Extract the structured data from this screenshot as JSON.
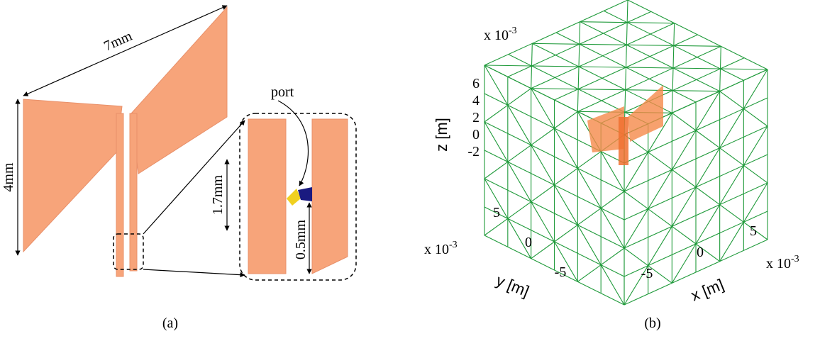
{
  "panel_a": {
    "dim_width": "7mm",
    "dim_height": "4mm",
    "port": "port",
    "dim_gap_height": "1.7mm",
    "dim_feed": "0.5mm",
    "caption": "(a)"
  },
  "panel_b": {
    "z_scale": {
      "base": "x 10",
      "exp": "-3"
    },
    "y_scale": {
      "base": "x 10",
      "exp": "-3"
    },
    "x_scale": {
      "base": "x 10",
      "exp": "-3"
    },
    "z_label": "z [m]",
    "y_label": "y [m]",
    "x_label": "x [m]",
    "z_ticks": [
      "6",
      "4",
      "2",
      "0",
      "-2"
    ],
    "y_ticks": [
      "5",
      "0",
      "-5"
    ],
    "x_ticks": [
      "5",
      "0",
      "-5"
    ],
    "caption": "(b)"
  }
}
